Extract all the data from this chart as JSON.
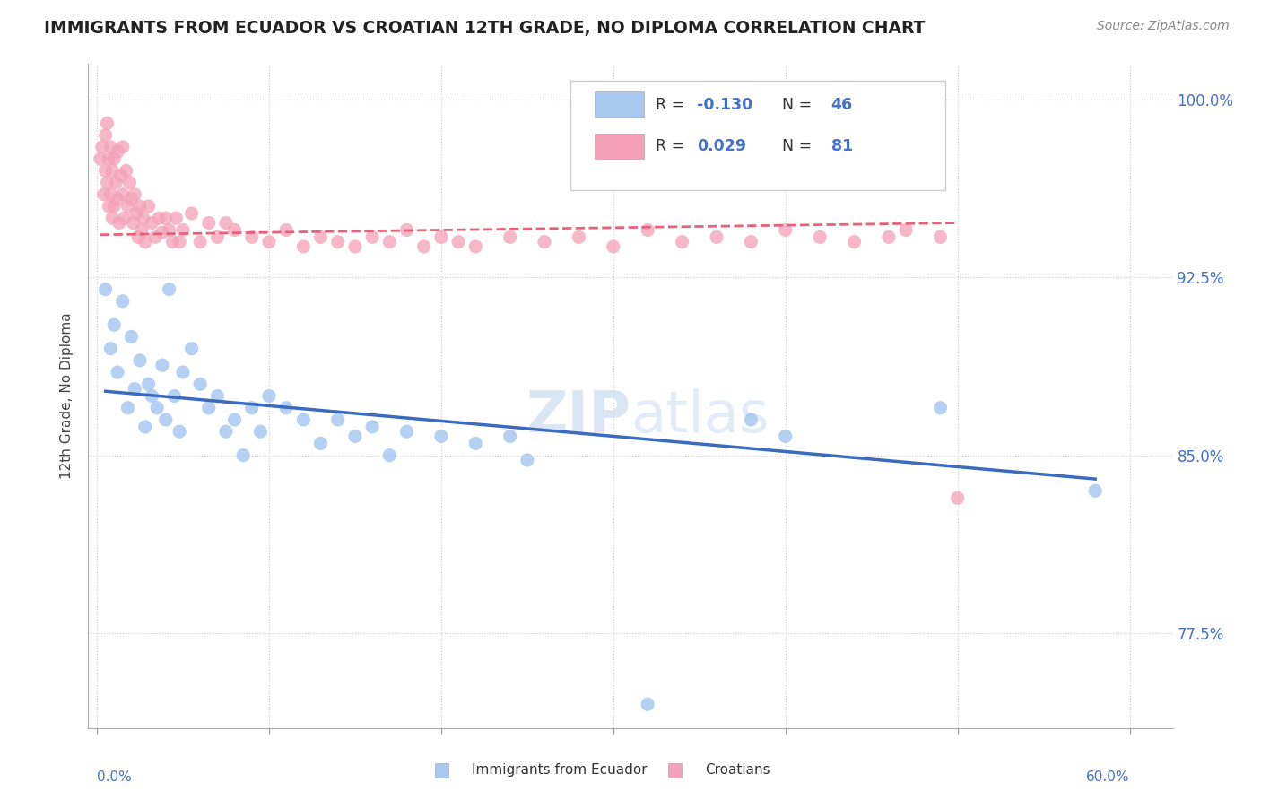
{
  "title": "IMMIGRANTS FROM ECUADOR VS CROATIAN 12TH GRADE, NO DIPLOMA CORRELATION CHART",
  "source": "Source: ZipAtlas.com",
  "ylabel": "12th Grade, No Diploma",
  "ymin": 0.735,
  "ymax": 1.015,
  "xmin": -0.005,
  "xmax": 0.625,
  "R1": -0.13,
  "N1": 46,
  "R2": 0.029,
  "N2": 81,
  "color_ecuador": "#a8c8f0",
  "color_croatian": "#f4a0b8",
  "trendline_color_ecuador": "#3a6bbf",
  "trendline_color_croatian": "#e8607a",
  "background_color": "#ffffff",
  "watermark": "ZIPatlas",
  "ytick_positions": [
    0.775,
    0.85,
    0.925,
    1.0
  ],
  "ytick_labels": [
    "77.5%",
    "85.0%",
    "92.5%",
    "100.0%"
  ],
  "xtick_positions": [
    0.0,
    0.1,
    0.2,
    0.3,
    0.4,
    0.5,
    0.6
  ],
  "legend_label1": "Immigrants from Ecuador",
  "legend_label2": "Croatians"
}
